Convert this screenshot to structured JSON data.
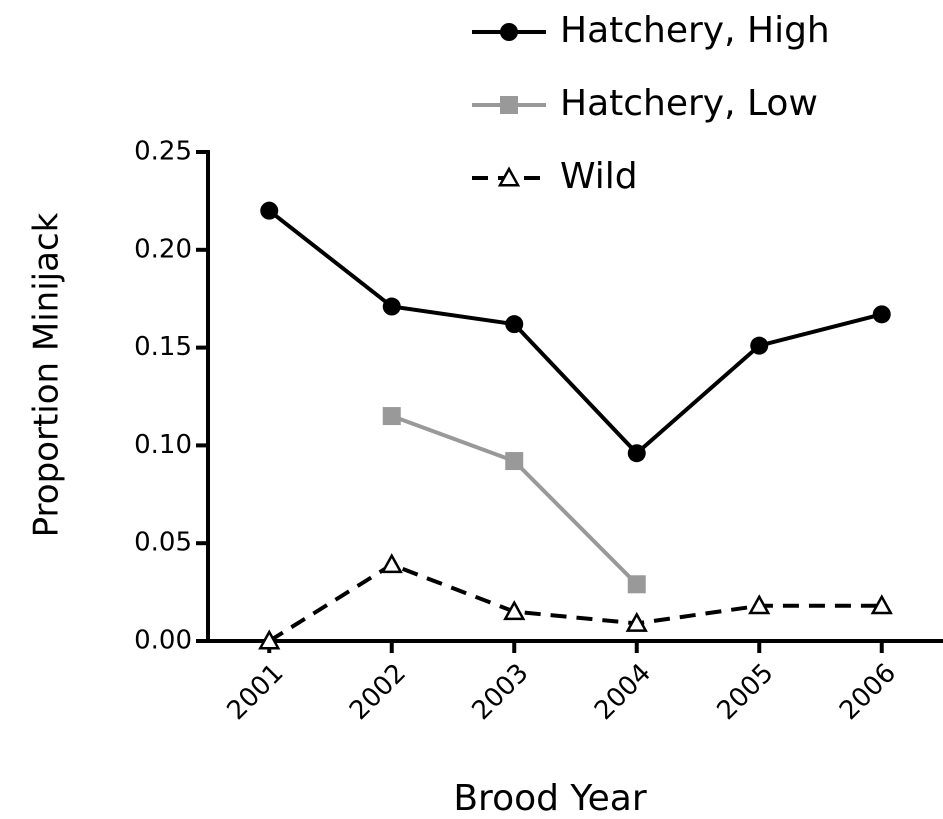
{
  "chart_data": {
    "type": "line",
    "x_label": "Brood Year",
    "y_label": "Proportion Minijack",
    "categories": [
      "2001",
      "2002",
      "2003",
      "2004",
      "2005",
      "2006"
    ],
    "series": [
      {
        "name": "Hatchery, High",
        "color": "#000000",
        "marker": "circle",
        "dashed": false,
        "values": [
          0.22,
          0.171,
          0.162,
          0.096,
          0.151,
          0.167
        ]
      },
      {
        "name": "Hatchery, Low",
        "color": "#999999",
        "marker": "square",
        "dashed": false,
        "values": [
          null,
          0.115,
          0.092,
          0.029,
          null,
          null
        ]
      },
      {
        "name": "Wild",
        "color": "#000000",
        "marker": "triangle",
        "dashed": true,
        "values": [
          0,
          0.039,
          0.015,
          0.009,
          0.018,
          0.018
        ]
      }
    ],
    "ylim": [
      0,
      0.25
    ],
    "yticks": [
      {
        "value": 0,
        "label": "0.00"
      },
      0.05,
      {
        "value": 0.1,
        "label": "0.10"
      },
      0.15,
      {
        "value": 0.2,
        "label": "0.20"
      },
      0.25
    ],
    "grid": false,
    "legend": "top-right"
  }
}
